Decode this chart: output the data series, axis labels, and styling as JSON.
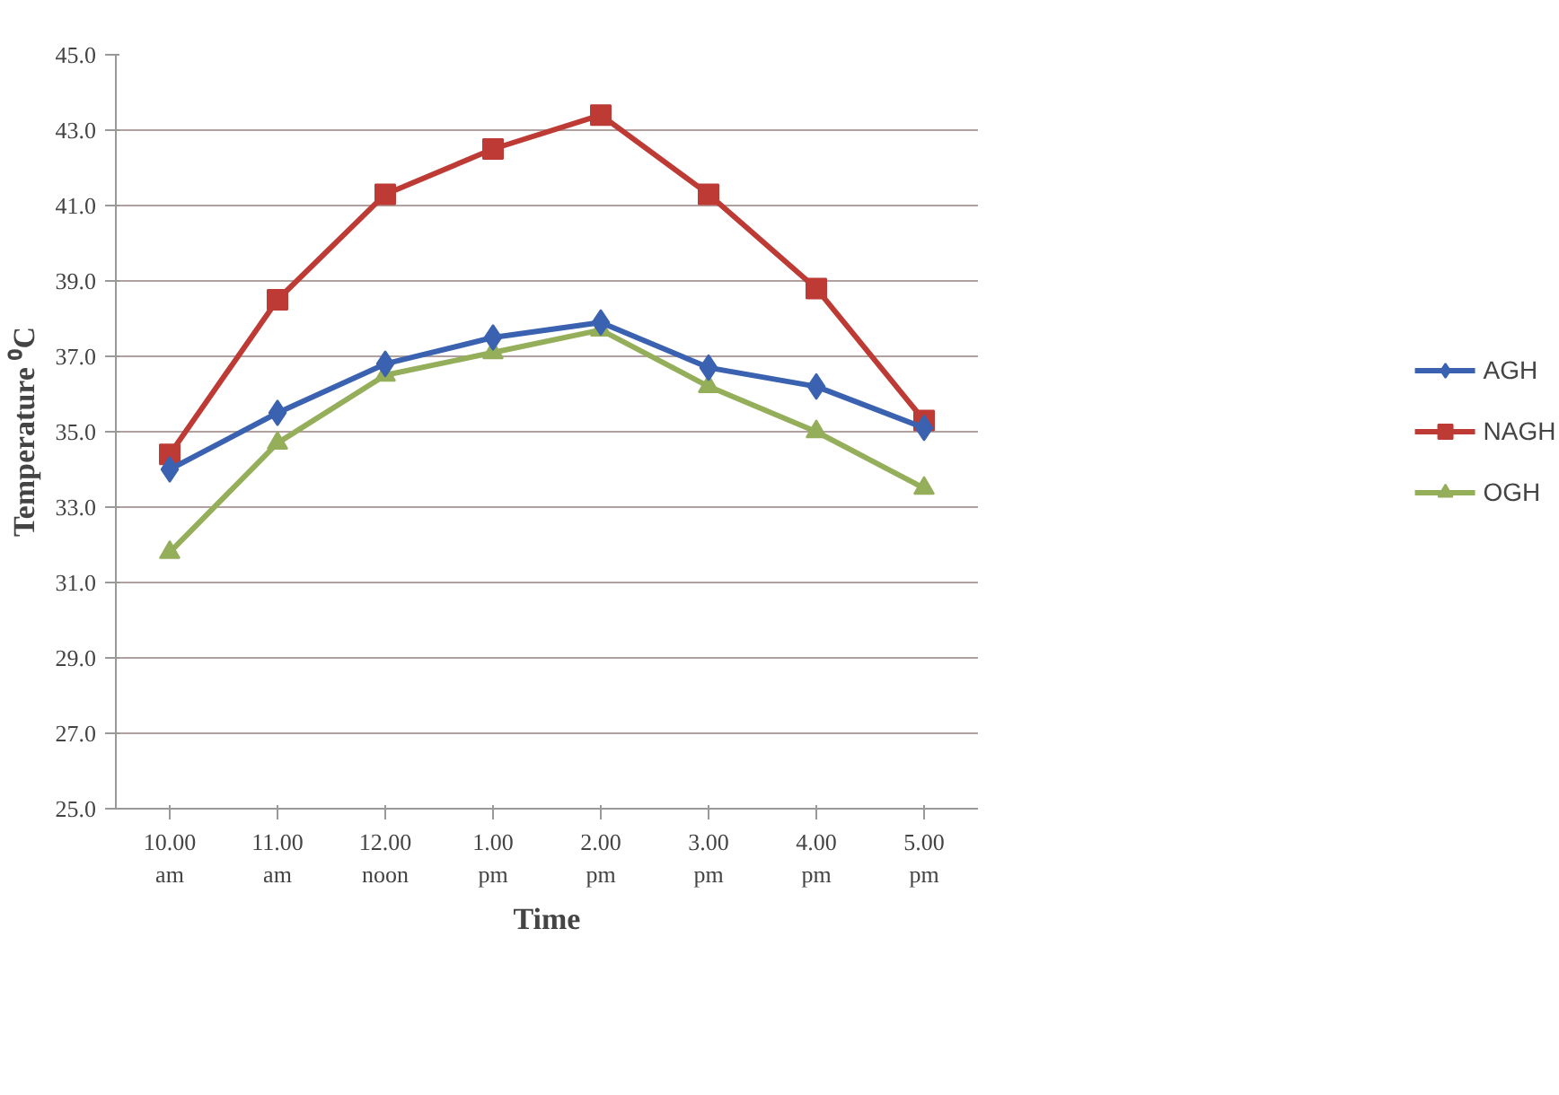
{
  "chart_data": {
    "type": "line",
    "xlabel": "Time",
    "ylabel": "Temperature ⁰C",
    "categories": [
      "10.00\nam",
      "11.00\nam",
      "12.00\nnoon",
      "1.00\npm",
      "2.00\npm",
      "3.00\npm",
      "4.00\npm",
      "5.00\npm"
    ],
    "series": [
      {
        "name": "AGH",
        "color": "#3a62b0",
        "marker": "diamond",
        "values": [
          34.0,
          35.5,
          36.8,
          37.5,
          37.9,
          36.7,
          36.2,
          35.1
        ]
      },
      {
        "name": "NAGH",
        "color": "#be3a35",
        "marker": "square",
        "values": [
          34.4,
          38.5,
          41.3,
          42.5,
          43.4,
          41.3,
          38.8,
          35.3
        ]
      },
      {
        "name": "OGH",
        "color": "#94ae5a",
        "marker": "triangle",
        "values": [
          31.8,
          34.7,
          36.5,
          37.1,
          37.7,
          36.2,
          35.0,
          33.5
        ]
      }
    ],
    "ylim": [
      25,
      45
    ],
    "yticks": [
      {
        "value": 25,
        "label": "25.0"
      },
      {
        "value": 27,
        "label": "27.0"
      },
      {
        "value": 29,
        "label": "29.0"
      },
      {
        "value": 31,
        "label": "31.0"
      },
      {
        "value": 33,
        "label": "33.0"
      },
      {
        "value": 35,
        "label": "35.0"
      },
      {
        "value": 37,
        "label": "37.0"
      },
      {
        "value": 39,
        "label": "39.0"
      },
      {
        "value": 41,
        "label": "41.0"
      },
      {
        "value": 43,
        "label": "43.0"
      },
      {
        "value": 45,
        "label": "45.0"
      }
    ],
    "grid": "y",
    "legend": "right",
    "line_style": "solid"
  }
}
